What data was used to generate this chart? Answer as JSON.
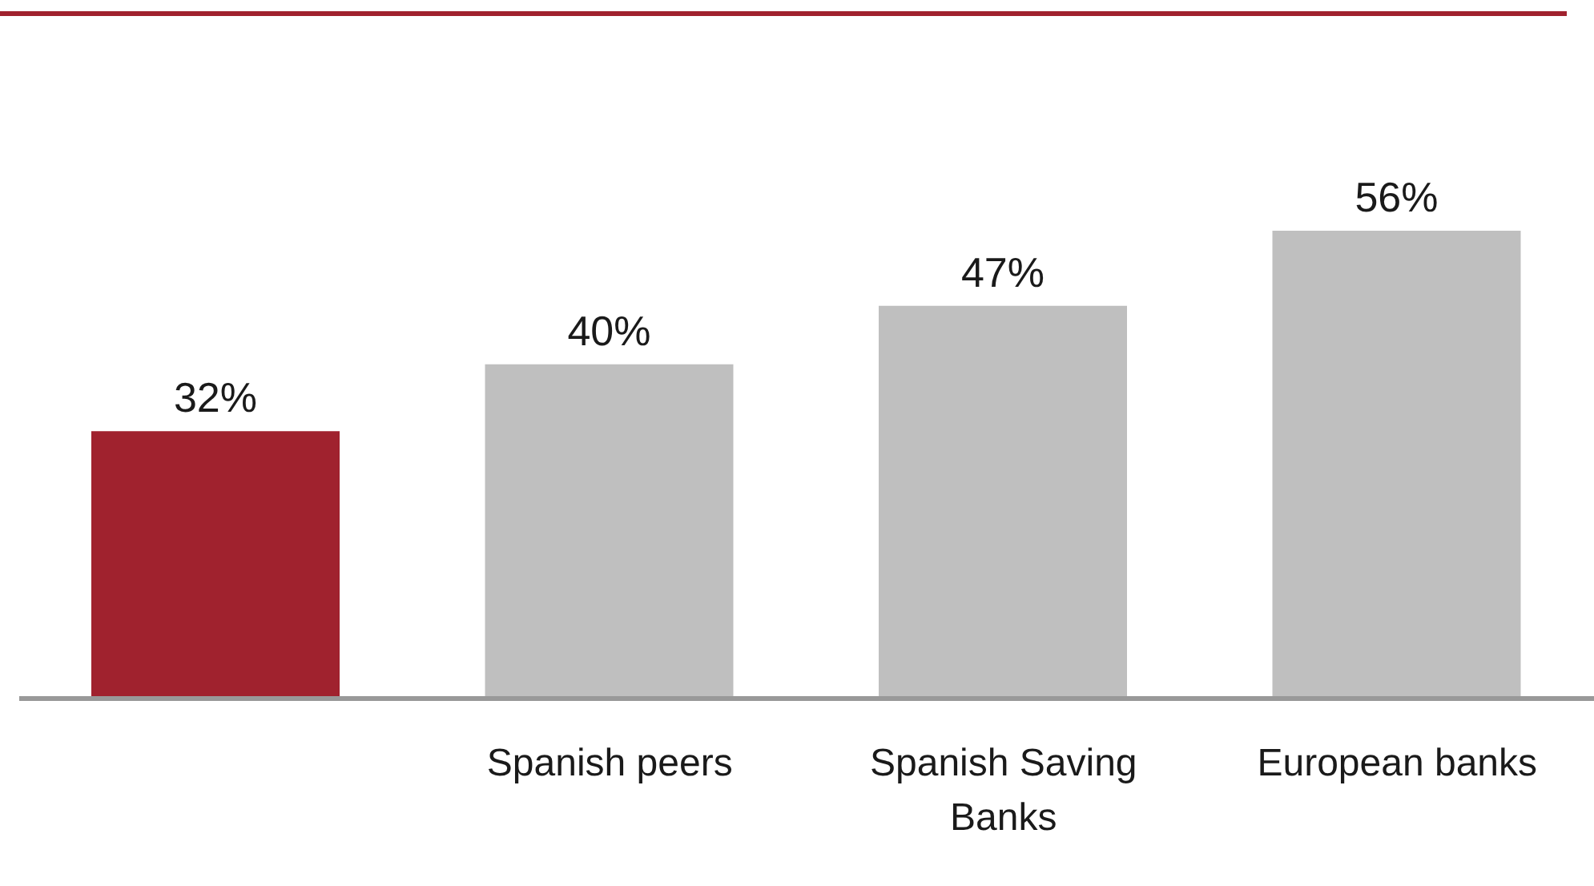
{
  "chart_data": {
    "type": "bar",
    "categories": [
      null,
      "Spanish peers",
      "Spanish Saving Banks",
      "European banks"
    ],
    "values": [
      32,
      40,
      47,
      56
    ],
    "colors": [
      "#a0222e",
      "#bfbfbf",
      "#bfbfbf",
      "#bfbfbf"
    ],
    "value_labels": [
      "32%",
      "40%",
      "47%",
      "56%"
    ],
    "tick_labels": "x"
  }
}
